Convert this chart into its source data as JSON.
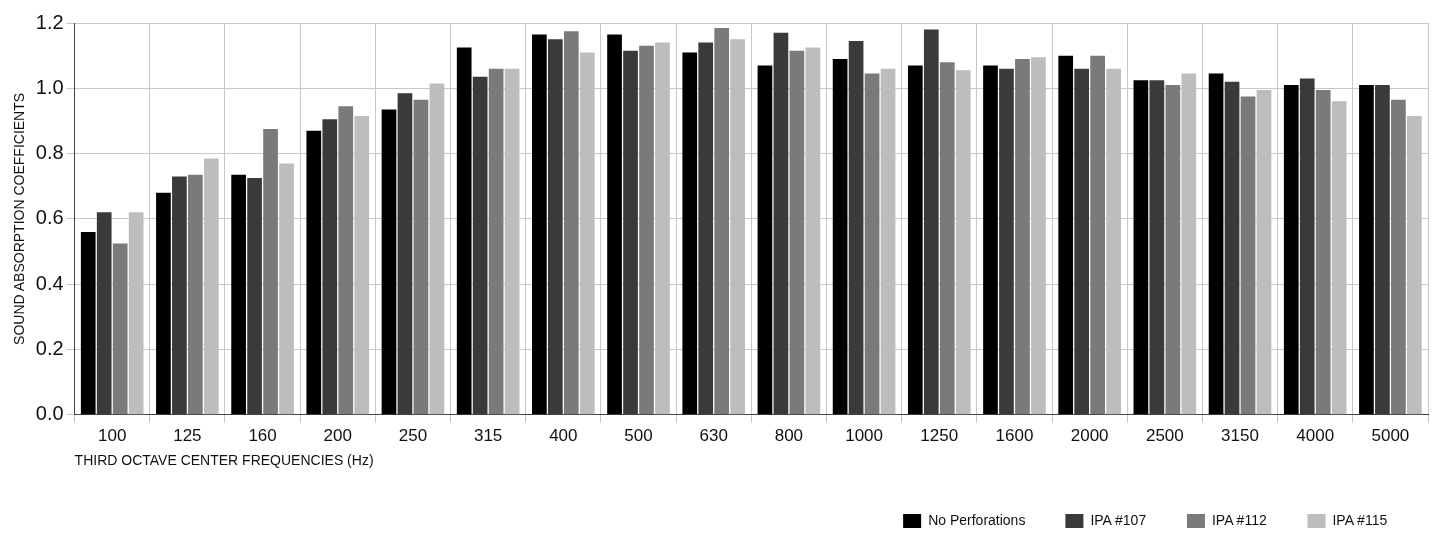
{
  "chart_data": {
    "type": "bar",
    "xlabel": "THIRD OCTAVE CENTER FREQUENCIES (Hz)",
    "ylabel": "SOUND ABSORPTION COEFFICIENTS",
    "categories": [
      "100",
      "125",
      "160",
      "200",
      "250",
      "315",
      "400",
      "500",
      "630",
      "800",
      "1000",
      "1250",
      "1600",
      "2000",
      "2500",
      "3150",
      "4000",
      "5000"
    ],
    "series": [
      {
        "name": "No Perforations",
        "color": "#000000",
        "values": [
          0.56,
          0.68,
          0.735,
          0.87,
          0.935,
          1.125,
          1.165,
          1.165,
          1.11,
          1.07,
          1.09,
          1.07,
          1.07,
          1.1,
          1.025,
          1.045,
          1.01,
          1.01
        ]
      },
      {
        "name": "IPA #107",
        "color": "#3a3a3a",
        "values": [
          0.62,
          0.73,
          0.725,
          0.905,
          0.985,
          1.035,
          1.15,
          1.115,
          1.14,
          1.17,
          1.145,
          1.18,
          1.06,
          1.06,
          1.025,
          1.02,
          1.03,
          1.01
        ]
      },
      {
        "name": "IPA #112",
        "color": "#7a7a7a",
        "values": [
          0.525,
          0.735,
          0.875,
          0.945,
          0.965,
          1.06,
          1.175,
          1.13,
          1.185,
          1.115,
          1.045,
          1.08,
          1.09,
          1.1,
          1.01,
          0.975,
          0.995,
          0.965
        ]
      },
      {
        "name": "IPA #115",
        "color": "#bdbdbd",
        "values": [
          0.62,
          0.785,
          0.77,
          0.915,
          1.015,
          1.06,
          1.11,
          1.14,
          1.15,
          1.125,
          1.06,
          1.055,
          1.095,
          1.06,
          1.045,
          0.995,
          0.96,
          0.915
        ]
      }
    ],
    "ylim": [
      0,
      1.2
    ],
    "yticks": [
      {
        "value": 0,
        "label": "0.0"
      },
      0.2,
      0.4,
      0.6,
      0.8,
      {
        "value": 1,
        "label": "1.0"
      },
      1.2
    ],
    "grid": true,
    "legend": "bottom right"
  }
}
